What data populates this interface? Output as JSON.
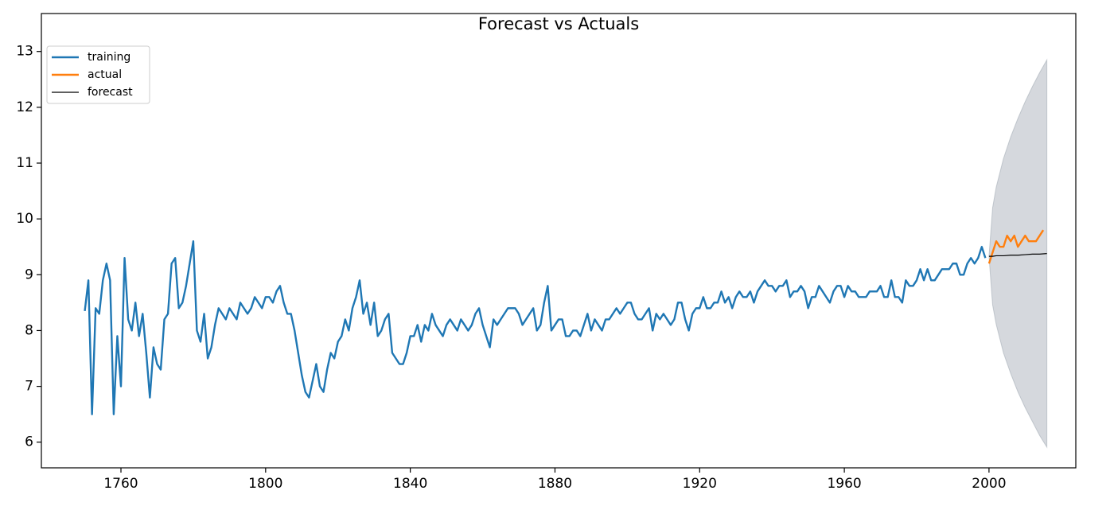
{
  "chart_data": {
    "type": "line",
    "title": "Forecast vs Actuals",
    "xlim": [
      1738,
      2024
    ],
    "xticks": [
      1760,
      1800,
      1840,
      1880,
      1920,
      1960,
      2000
    ],
    "ylim": [
      5.54,
      13.68
    ],
    "yticks": [
      6,
      7,
      8,
      9,
      10,
      11,
      12,
      13
    ],
    "legend": "upper left",
    "series": [
      {
        "name": "training",
        "color": "#1f77b4",
        "x": [
          1750,
          1751,
          1752,
          1753,
          1754,
          1755,
          1756,
          1757,
          1758,
          1759,
          1760,
          1761,
          1762,
          1763,
          1764,
          1765,
          1766,
          1767,
          1768,
          1769,
          1770,
          1771,
          1772,
          1773,
          1774,
          1775,
          1776,
          1777,
          1778,
          1779,
          1780,
          1781,
          1782,
          1783,
          1784,
          1785,
          1786,
          1787,
          1788,
          1789,
          1790,
          1791,
          1792,
          1793,
          1794,
          1795,
          1796,
          1797,
          1798,
          1799,
          1800,
          1801,
          1802,
          1803,
          1804,
          1805,
          1806,
          1807,
          1808,
          1809,
          1810,
          1811,
          1812,
          1813,
          1814,
          1815,
          1816,
          1817,
          1818,
          1819,
          1820,
          1821,
          1822,
          1823,
          1824,
          1825,
          1826,
          1827,
          1828,
          1829,
          1830,
          1831,
          1832,
          1833,
          1834,
          1835,
          1836,
          1837,
          1838,
          1839,
          1840,
          1841,
          1842,
          1843,
          1844,
          1845,
          1846,
          1847,
          1848,
          1849,
          1850,
          1851,
          1852,
          1853,
          1854,
          1855,
          1856,
          1857,
          1858,
          1859,
          1860,
          1861,
          1862,
          1863,
          1864,
          1865,
          1866,
          1867,
          1868,
          1869,
          1870,
          1871,
          1872,
          1873,
          1874,
          1875,
          1876,
          1877,
          1878,
          1879,
          1880,
          1881,
          1882,
          1883,
          1884,
          1885,
          1886,
          1887,
          1888,
          1889,
          1890,
          1891,
          1892,
          1893,
          1894,
          1895,
          1896,
          1897,
          1898,
          1899,
          1900,
          1901,
          1902,
          1903,
          1904,
          1905,
          1906,
          1907,
          1908,
          1909,
          1910,
          1911,
          1912,
          1913,
          1914,
          1915,
          1916,
          1917,
          1918,
          1919,
          1920,
          1921,
          1922,
          1923,
          1924,
          1925,
          1926,
          1927,
          1928,
          1929,
          1930,
          1931,
          1932,
          1933,
          1934,
          1935,
          1936,
          1937,
          1938,
          1939,
          1940,
          1941,
          1942,
          1943,
          1944,
          1945,
          1946,
          1947,
          1948,
          1949,
          1950,
          1951,
          1952,
          1953,
          1954,
          1955,
          1956,
          1957,
          1958,
          1959,
          1960,
          1961,
          1962,
          1963,
          1964,
          1965,
          1966,
          1967,
          1968,
          1969,
          1970,
          1971,
          1972,
          1973,
          1974,
          1975,
          1976,
          1977,
          1978,
          1979,
          1980,
          1981,
          1982,
          1983,
          1984,
          1985,
          1986,
          1987,
          1988,
          1989,
          1990,
          1991,
          1992,
          1993,
          1994,
          1995,
          1996,
          1997,
          1998,
          1999
        ],
        "values": [
          8.35,
          8.9,
          6.5,
          8.4,
          8.3,
          8.9,
          9.2,
          8.9,
          6.5,
          7.9,
          7.0,
          9.3,
          8.2,
          8.0,
          8.5,
          7.9,
          8.3,
          7.6,
          6.8,
          7.7,
          7.4,
          7.3,
          8.2,
          8.3,
          9.2,
          9.3,
          8.4,
          8.5,
          8.8,
          9.2,
          9.6,
          8.0,
          7.8,
          8.3,
          7.5,
          7.7,
          8.1,
          8.4,
          8.3,
          8.2,
          8.4,
          8.3,
          8.2,
          8.5,
          8.4,
          8.3,
          8.4,
          8.6,
          8.5,
          8.4,
          8.6,
          8.6,
          8.5,
          8.7,
          8.8,
          8.5,
          8.3,
          8.3,
          8.0,
          7.6,
          7.2,
          6.9,
          6.8,
          7.1,
          7.4,
          7.0,
          6.9,
          7.3,
          7.6,
          7.5,
          7.8,
          7.9,
          8.2,
          8.0,
          8.4,
          8.6,
          8.9,
          8.3,
          8.5,
          8.1,
          8.5,
          7.9,
          8.0,
          8.2,
          8.3,
          7.6,
          7.5,
          7.4,
          7.4,
          7.6,
          7.9,
          7.9,
          8.1,
          7.8,
          8.1,
          8.0,
          8.3,
          8.1,
          8.0,
          7.9,
          8.1,
          8.2,
          8.1,
          8.0,
          8.2,
          8.1,
          8.0,
          8.1,
          8.3,
          8.4,
          8.1,
          7.9,
          7.7,
          8.2,
          8.1,
          8.2,
          8.3,
          8.4,
          8.4,
          8.4,
          8.3,
          8.1,
          8.2,
          8.3,
          8.4,
          8.0,
          8.1,
          8.5,
          8.8,
          8.0,
          8.1,
          8.2,
          8.2,
          7.9,
          7.9,
          8.0,
          8.0,
          7.9,
          8.1,
          8.3,
          8.0,
          8.2,
          8.1,
          8.0,
          8.2,
          8.2,
          8.3,
          8.4,
          8.3,
          8.4,
          8.5,
          8.5,
          8.3,
          8.2,
          8.2,
          8.3,
          8.4,
          8.0,
          8.3,
          8.2,
          8.3,
          8.2,
          8.1,
          8.2,
          8.5,
          8.5,
          8.2,
          8.0,
          8.3,
          8.4,
          8.4,
          8.6,
          8.4,
          8.4,
          8.5,
          8.5,
          8.7,
          8.5,
          8.6,
          8.4,
          8.6,
          8.7,
          8.6,
          8.6,
          8.7,
          8.5,
          8.7,
          8.8,
          8.9,
          8.8,
          8.8,
          8.7,
          8.8,
          8.8,
          8.9,
          8.6,
          8.7,
          8.7,
          8.8,
          8.7,
          8.4,
          8.6,
          8.6,
          8.8,
          8.7,
          8.6,
          8.5,
          8.7,
          8.8,
          8.8,
          8.6,
          8.8,
          8.7,
          8.7,
          8.6,
          8.6,
          8.6,
          8.7,
          8.7,
          8.7,
          8.8,
          8.6,
          8.6,
          8.9,
          8.6,
          8.6,
          8.5,
          8.9,
          8.8,
          8.8,
          8.9,
          9.1,
          8.9,
          9.1,
          8.9,
          8.9,
          9.0,
          9.1,
          9.1,
          9.1,
          9.2,
          9.2,
          9.0,
          9.0,
          9.2,
          9.3,
          9.2,
          9.3,
          9.5,
          9.3
        ]
      },
      {
        "name": "actual",
        "color": "#ff7f0e",
        "x": [
          2000,
          2001,
          2002,
          2003,
          2004,
          2005,
          2006,
          2007,
          2008,
          2009,
          2010,
          2011,
          2012,
          2013,
          2014,
          2015
        ],
        "values": [
          9.2,
          9.4,
          9.6,
          9.5,
          9.5,
          9.7,
          9.6,
          9.7,
          9.5,
          9.6,
          9.7,
          9.6,
          9.6,
          9.6,
          9.7,
          9.8
        ]
      },
      {
        "name": "forecast",
        "color": "#000000",
        "x": [
          2000,
          2001,
          2002,
          2004,
          2006,
          2008,
          2010,
          2012,
          2014,
          2016
        ],
        "values": [
          9.33,
          9.33,
          9.34,
          9.34,
          9.35,
          9.35,
          9.36,
          9.37,
          9.37,
          9.38
        ]
      }
    ],
    "band": {
      "color": "#9aa3ad",
      "x": [
        2000,
        2001,
        2002,
        2004,
        2006,
        2008,
        2010,
        2012,
        2014,
        2016
      ],
      "lower": [
        9.33,
        8.46,
        8.11,
        7.6,
        7.23,
        6.9,
        6.62,
        6.37,
        6.12,
        5.91
      ],
      "upper": [
        9.33,
        10.2,
        10.57,
        11.08,
        11.47,
        11.8,
        12.1,
        12.37,
        12.62,
        12.85
      ]
    }
  }
}
